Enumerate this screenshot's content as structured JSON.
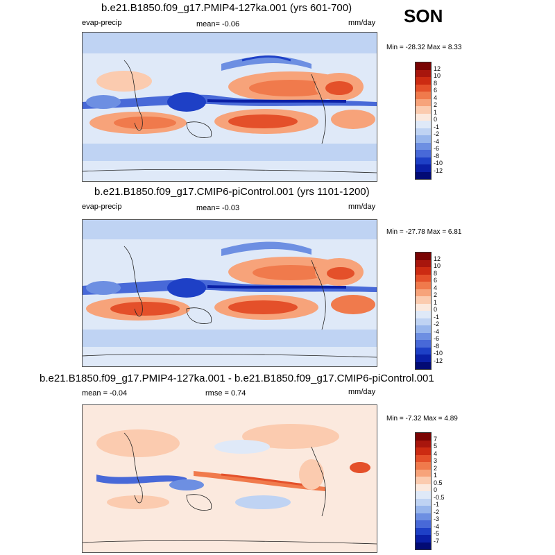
{
  "season": "SON",
  "panels": [
    {
      "title": "b.e21.B1850.f09_g17.PMIP4-127ka.001 (yrs 601-700)",
      "left_label": "evap-precip",
      "center_label": "mean=  -0.06",
      "units": "mm/day",
      "minmax": "Min = -28.32 Max =   8.33",
      "levels": [
        "12",
        "10",
        "8",
        "6",
        "4",
        "2",
        "1",
        "0",
        "-1",
        "-2",
        "-4",
        "-6",
        "-8",
        "-10",
        "-12"
      ],
      "colors": [
        "#7a0403",
        "#a8160d",
        "#cc2b12",
        "#e4502a",
        "#f07a4c",
        "#f7a37a",
        "#fbcbaf",
        "#fbe9de",
        "#dfe9f8",
        "#bfd3f3",
        "#98b6ec",
        "#6d8fe2",
        "#4869d8",
        "#1e40c6",
        "#0a1fa6",
        "#020b74"
      ]
    },
    {
      "title": "b.e21.B1850.f09_g17.CMIP6-piControl.001 (yrs 1101-1200)",
      "left_label": "evap-precip",
      "center_label": "mean=  -0.03",
      "units": "mm/day",
      "minmax": "Min = -27.78 Max =   6.81",
      "levels": [
        "12",
        "10",
        "8",
        "6",
        "4",
        "2",
        "1",
        "0",
        "-1",
        "-2",
        "-4",
        "-6",
        "-8",
        "-10",
        "-12"
      ],
      "colors": [
        "#7a0403",
        "#a8160d",
        "#cc2b12",
        "#e4502a",
        "#f07a4c",
        "#f7a37a",
        "#fbcbaf",
        "#fbe9de",
        "#dfe9f8",
        "#bfd3f3",
        "#98b6ec",
        "#6d8fe2",
        "#4869d8",
        "#1e40c6",
        "#0a1fa6",
        "#020b74"
      ]
    },
    {
      "title": "b.e21.B1850.f09_g17.PMIP4-127ka.001 - b.e21.B1850.f09_g17.CMIP6-piControl.001",
      "left_label": "mean =  -0.04",
      "center_label": "rmse =   0.74",
      "units": "mm/day",
      "minmax": "Min =  -7.32 Max =   4.89",
      "levels": [
        "7",
        "5",
        "4",
        "3",
        "2",
        "1",
        "0.5",
        "0",
        "-0.5",
        "-1",
        "-2",
        "-3",
        "-4",
        "-5",
        "-7"
      ],
      "colors": [
        "#7a0403",
        "#a8160d",
        "#cc2b12",
        "#e4502a",
        "#f07a4c",
        "#f7a37a",
        "#fbcbaf",
        "#fbe9de",
        "#dfe9f8",
        "#bfd3f3",
        "#98b6ec",
        "#6d8fe2",
        "#4869d8",
        "#1e40c6",
        "#0a1fa6",
        "#020b74"
      ]
    }
  ]
}
